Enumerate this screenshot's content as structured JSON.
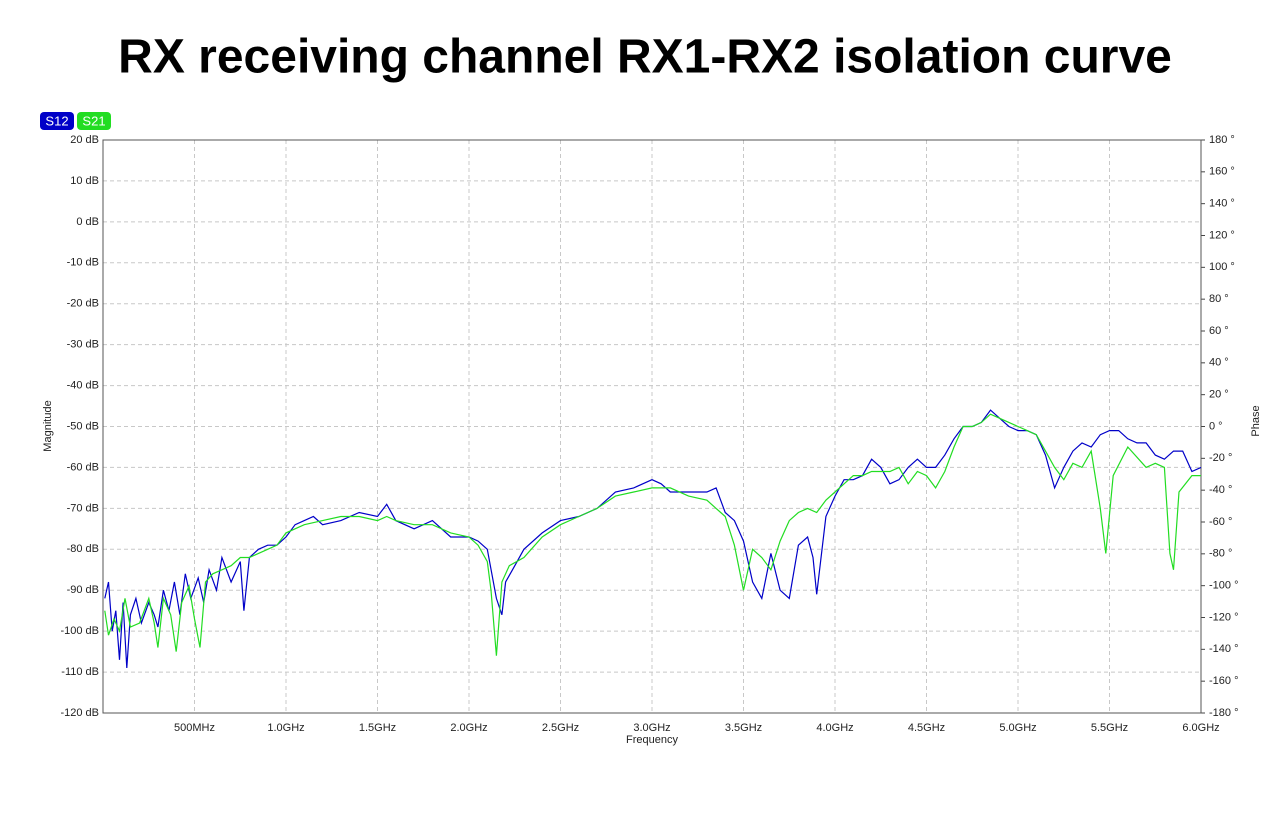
{
  "chart_data": {
    "type": "line",
    "title": "RX receiving channel RX1-RX2 isolation curve",
    "x_label": "Frequency",
    "y_label": "Magnitude",
    "y2_label": "Phase",
    "xlim": [
      0,
      6
    ],
    "ylim": [
      -120,
      20
    ],
    "y2lim": [
      -180,
      180
    ],
    "grid": true,
    "xticks": [
      {
        "value": 0.5,
        "label": "500MHz"
      },
      {
        "value": 1.0,
        "label": "1.0GHz"
      },
      {
        "value": 1.5,
        "label": "1.5GHz"
      },
      {
        "value": 2.0,
        "label": "2.0GHz"
      },
      {
        "value": 2.5,
        "label": "2.5GHz"
      },
      {
        "value": 3.0,
        "label": "3.0GHz"
      },
      {
        "value": 3.5,
        "label": "3.5GHz"
      },
      {
        "value": 4.0,
        "label": "4.0GHz"
      },
      {
        "value": 4.5,
        "label": "4.5GHz"
      },
      {
        "value": 5.0,
        "label": "5.0GHz"
      },
      {
        "value": 5.5,
        "label": "5.5GHz"
      },
      {
        "value": 6.0,
        "label": "6.0GHz"
      }
    ],
    "yticks": [
      {
        "value": 20,
        "label": "20 dB"
      },
      {
        "value": 10,
        "label": "10 dB"
      },
      {
        "value": 0,
        "label": "0 dB"
      },
      {
        "value": -10,
        "label": "-10 dB"
      },
      {
        "value": -20,
        "label": "-20 dB"
      },
      {
        "value": -30,
        "label": "-30 dB"
      },
      {
        "value": -40,
        "label": "-40 dB"
      },
      {
        "value": -50,
        "label": "-50 dB"
      },
      {
        "value": -60,
        "label": "-60 dB"
      },
      {
        "value": -70,
        "label": "-70 dB"
      },
      {
        "value": -80,
        "label": "-80 dB"
      },
      {
        "value": -90,
        "label": "-90 dB"
      },
      {
        "value": -100,
        "label": "-100 dB"
      },
      {
        "value": -110,
        "label": "-110 dB"
      },
      {
        "value": -120,
        "label": "-120 dB"
      }
    ],
    "y2ticks": [
      {
        "value": 180,
        "label": "180 °"
      },
      {
        "value": 160,
        "label": "160 °"
      },
      {
        "value": 140,
        "label": "140 °"
      },
      {
        "value": 120,
        "label": "120 °"
      },
      {
        "value": 100,
        "label": "100 °"
      },
      {
        "value": 80,
        "label": "80 °"
      },
      {
        "value": 60,
        "label": "60 °"
      },
      {
        "value": 40,
        "label": "40 °"
      },
      {
        "value": 20,
        "label": "20 °"
      },
      {
        "value": 0,
        "label": "0 °"
      },
      {
        "value": -20,
        "label": "-20 °"
      },
      {
        "value": -40,
        "label": "-40 °"
      },
      {
        "value": -60,
        "label": "-60 °"
      },
      {
        "value": -80,
        "label": "-80 °"
      },
      {
        "value": -100,
        "label": "-100 °"
      },
      {
        "value": -120,
        "label": "-120 °"
      },
      {
        "value": -140,
        "label": "-140 °"
      },
      {
        "value": -160,
        "label": "-160 °"
      },
      {
        "value": -180,
        "label": "-180 °"
      }
    ],
    "series": [
      {
        "name": "S12",
        "color": "#0000c8",
        "x": [
          0.01,
          0.03,
          0.05,
          0.07,
          0.09,
          0.11,
          0.13,
          0.15,
          0.18,
          0.21,
          0.25,
          0.28,
          0.3,
          0.33,
          0.36,
          0.39,
          0.42,
          0.45,
          0.48,
          0.52,
          0.55,
          0.58,
          0.62,
          0.65,
          0.7,
          0.75,
          0.77,
          0.8,
          0.85,
          0.9,
          0.95,
          1.0,
          1.05,
          1.1,
          1.15,
          1.2,
          1.3,
          1.4,
          1.5,
          1.55,
          1.6,
          1.7,
          1.8,
          1.9,
          2.0,
          2.05,
          2.1,
          2.15,
          2.18,
          2.2,
          2.25,
          2.3,
          2.4,
          2.5,
          2.6,
          2.7,
          2.8,
          2.9,
          3.0,
          3.05,
          3.1,
          3.2,
          3.3,
          3.35,
          3.4,
          3.45,
          3.5,
          3.55,
          3.6,
          3.65,
          3.7,
          3.75,
          3.8,
          3.85,
          3.88,
          3.9,
          3.95,
          4.0,
          4.05,
          4.1,
          4.15,
          4.2,
          4.25,
          4.3,
          4.35,
          4.4,
          4.45,
          4.5,
          4.55,
          4.6,
          4.65,
          4.7,
          4.75,
          4.8,
          4.85,
          4.9,
          4.95,
          5.0,
          5.05,
          5.1,
          5.15,
          5.2,
          5.25,
          5.3,
          5.35,
          5.4,
          5.45,
          5.5,
          5.55,
          5.6,
          5.65,
          5.7,
          5.75,
          5.8,
          5.85,
          5.9,
          5.95,
          6.0
        ],
        "values": [
          -92,
          -88,
          -100,
          -95,
          -107,
          -93,
          -109,
          -96,
          -92,
          -98,
          -93,
          -96,
          -99,
          -90,
          -95,
          -88,
          -96,
          -86,
          -92,
          -87,
          -93,
          -85,
          -90,
          -82,
          -88,
          -83,
          -95,
          -82,
          -80,
          -79,
          -79,
          -77,
          -74,
          -73,
          -72,
          -74,
          -73,
          -71,
          -72,
          -69,
          -73,
          -75,
          -73,
          -77,
          -77,
          -78,
          -80,
          -92,
          -96,
          -88,
          -84,
          -80,
          -76,
          -73,
          -72,
          -70,
          -66,
          -65,
          -63,
          -64,
          -66,
          -66,
          -66,
          -65,
          -71,
          -73,
          -78,
          -88,
          -92,
          -81,
          -90,
          -92,
          -79,
          -77,
          -82,
          -91,
          -72,
          -67,
          -63,
          -63,
          -62,
          -58,
          -60,
          -64,
          -63,
          -60,
          -58,
          -60,
          -60,
          -57,
          -53,
          -50,
          -50,
          -49,
          -46,
          -48,
          -50,
          -51,
          -51,
          -52,
          -57,
          -65,
          -60,
          -56,
          -54,
          -55,
          -52,
          -51,
          -51,
          -53,
          -54,
          -54,
          -57,
          -58,
          -56,
          -56,
          -61,
          -60
        ]
      },
      {
        "name": "S21",
        "color": "#22dd22",
        "x": [
          0.01,
          0.03,
          0.06,
          0.09,
          0.12,
          0.15,
          0.2,
          0.25,
          0.28,
          0.3,
          0.33,
          0.37,
          0.4,
          0.43,
          0.47,
          0.5,
          0.53,
          0.56,
          0.6,
          0.65,
          0.7,
          0.75,
          0.8,
          0.85,
          0.9,
          0.95,
          1.0,
          1.05,
          1.1,
          1.2,
          1.3,
          1.4,
          1.5,
          1.55,
          1.6,
          1.7,
          1.8,
          1.9,
          2.0,
          2.05,
          2.1,
          2.12,
          2.15,
          2.18,
          2.22,
          2.3,
          2.4,
          2.5,
          2.6,
          2.7,
          2.8,
          2.9,
          3.0,
          3.1,
          3.2,
          3.3,
          3.35,
          3.4,
          3.45,
          3.5,
          3.55,
          3.6,
          3.65,
          3.7,
          3.75,
          3.8,
          3.85,
          3.9,
          3.95,
          4.0,
          4.05,
          4.1,
          4.15,
          4.2,
          4.25,
          4.3,
          4.35,
          4.4,
          4.45,
          4.5,
          4.55,
          4.6,
          4.65,
          4.7,
          4.75,
          4.8,
          4.85,
          4.9,
          4.95,
          5.0,
          5.05,
          5.1,
          5.15,
          5.2,
          5.25,
          5.3,
          5.35,
          5.4,
          5.45,
          5.48,
          5.52,
          5.6,
          5.7,
          5.75,
          5.8,
          5.83,
          5.85,
          5.88,
          5.95,
          6.0
        ],
        "values": [
          -95,
          -101,
          -97,
          -100,
          -92,
          -99,
          -98,
          -92,
          -98,
          -104,
          -92,
          -96,
          -105,
          -93,
          -89,
          -97,
          -104,
          -88,
          -86,
          -85,
          -84,
          -82,
          -82,
          -81,
          -80,
          -79,
          -76,
          -75,
          -74,
          -73,
          -72,
          -72,
          -73,
          -72,
          -73,
          -74,
          -74,
          -76,
          -77,
          -79,
          -83,
          -90,
          -106,
          -88,
          -84,
          -82,
          -77,
          -74,
          -72,
          -70,
          -67,
          -66,
          -65,
          -65,
          -67,
          -68,
          -70,
          -72,
          -79,
          -90,
          -80,
          -82,
          -85,
          -78,
          -73,
          -71,
          -70,
          -71,
          -68,
          -66,
          -64,
          -62,
          -62,
          -61,
          -61,
          -61,
          -60,
          -64,
          -61,
          -62,
          -65,
          -61,
          -55,
          -50,
          -50,
          -49,
          -47,
          -48,
          -49,
          -50,
          -51,
          -52,
          -56,
          -60,
          -63,
          -59,
          -60,
          -56,
          -70,
          -81,
          -62,
          -55,
          -60,
          -59,
          -60,
          -81,
          -85,
          -66,
          -62,
          -62
        ]
      }
    ]
  }
}
